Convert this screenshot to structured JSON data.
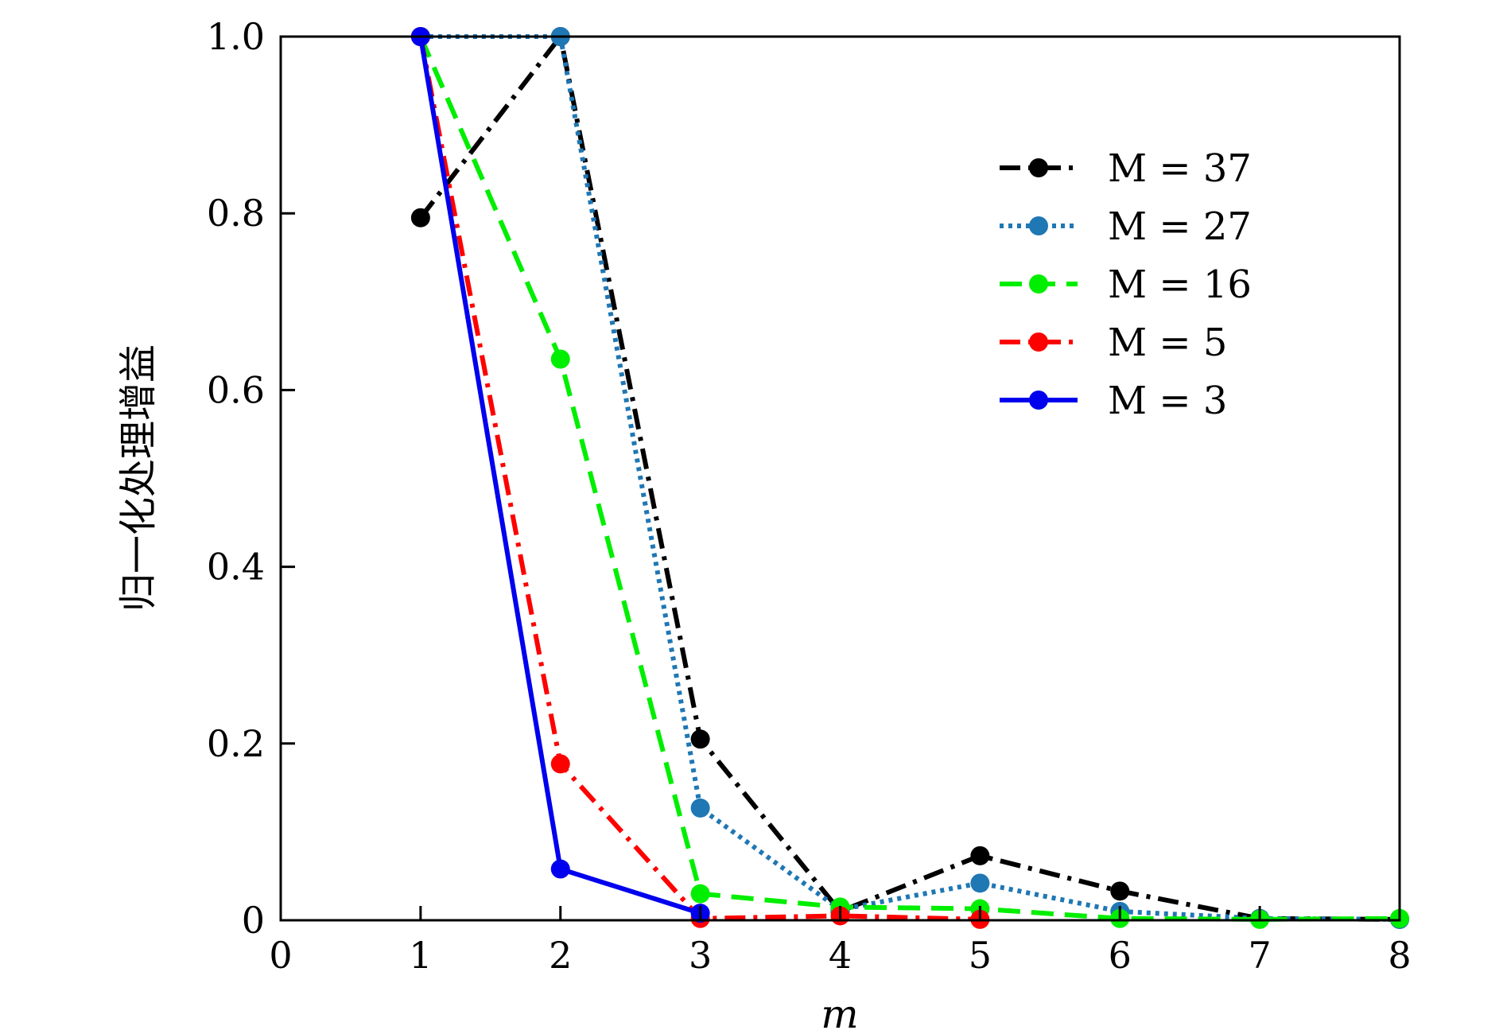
{
  "chart_data": {
    "type": "line",
    "title": "",
    "xlabel": "m",
    "ylabel": "归一化处理增益",
    "xlim": [
      0,
      8
    ],
    "ylim": [
      0,
      1
    ],
    "x_ticks": [
      "0",
      "1",
      "2",
      "3",
      "4",
      "5",
      "6",
      "7",
      "8"
    ],
    "y_ticks": [
      "0",
      "0.2",
      "0.4",
      "0.6",
      "0.8",
      "1.0"
    ],
    "x": [
      1,
      2,
      3,
      4,
      5,
      6,
      7,
      8
    ],
    "legend_position": "top-right",
    "grid": false,
    "series": [
      {
        "name": "M = 37",
        "color": "#000000",
        "style": "dashdot",
        "values": [
          0.795,
          1.0,
          0.205,
          0.01,
          0.073,
          0.033,
          0.002,
          0.001
        ]
      },
      {
        "name": "M = 27",
        "color": "#1f77b4",
        "style": "dotted",
        "values": [
          1.0,
          1.0,
          0.127,
          0.012,
          0.042,
          0.01,
          0.002,
          0.001
        ]
      },
      {
        "name": "M = 16",
        "color": "#00ee00",
        "style": "dashed",
        "values": [
          1.0,
          0.635,
          0.03,
          0.015,
          0.013,
          0.002,
          0.001,
          0.002
        ]
      },
      {
        "name": "M = 5",
        "color": "#ff0000",
        "style": "dashdot",
        "values": [
          1.0,
          0.177,
          0.002,
          0.005,
          0.001,
          null,
          null,
          null
        ]
      },
      {
        "name": "M = 3",
        "color": "#0000ee",
        "style": "solid",
        "values": [
          1.0,
          0.058,
          0.008,
          null,
          null,
          null,
          null,
          null
        ]
      }
    ]
  }
}
